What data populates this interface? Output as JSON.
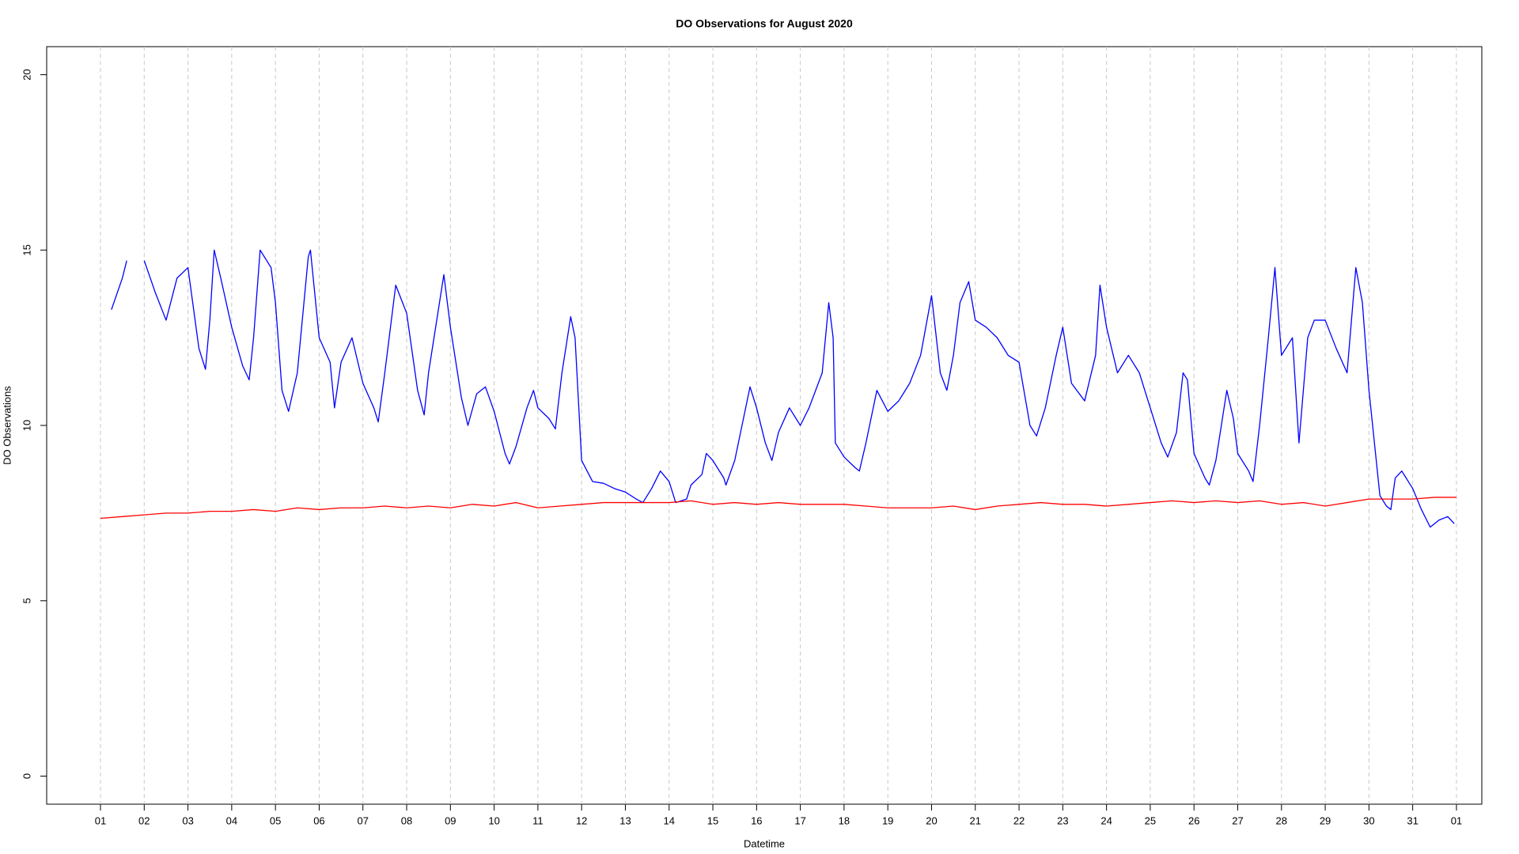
{
  "chart_data": {
    "type": "line",
    "title": "DO Observations for August 2020",
    "x_label": "Datetime",
    "y_label": "DO Observations",
    "xlim": [
      -0.23,
      32.58
    ],
    "ylim": [
      -0.8,
      20.8
    ],
    "yticks": [
      0,
      5,
      10,
      15,
      20
    ],
    "xticks": [
      {
        "value": 1,
        "label": "01"
      },
      {
        "value": 2,
        "label": "02"
      },
      {
        "value": 3,
        "label": "03"
      },
      {
        "value": 4,
        "label": "04"
      },
      {
        "value": 5,
        "label": "05"
      },
      {
        "value": 6,
        "label": "06"
      },
      {
        "value": 7,
        "label": "07"
      },
      {
        "value": 8,
        "label": "08"
      },
      {
        "value": 9,
        "label": "09"
      },
      {
        "value": 10,
        "label": "10"
      },
      {
        "value": 11,
        "label": "11"
      },
      {
        "value": 12,
        "label": "12"
      },
      {
        "value": 13,
        "label": "13"
      },
      {
        "value": 14,
        "label": "14"
      },
      {
        "value": 15,
        "label": "15"
      },
      {
        "value": 16,
        "label": "16"
      },
      {
        "value": 17,
        "label": "17"
      },
      {
        "value": 18,
        "label": "18"
      },
      {
        "value": 19,
        "label": "19"
      },
      {
        "value": 20,
        "label": "20"
      },
      {
        "value": 21,
        "label": "21"
      },
      {
        "value": 22,
        "label": "22"
      },
      {
        "value": 23,
        "label": "23"
      },
      {
        "value": 24,
        "label": "24"
      },
      {
        "value": 25,
        "label": "25"
      },
      {
        "value": 26,
        "label": "26"
      },
      {
        "value": 27,
        "label": "27"
      },
      {
        "value": 28,
        "label": "28"
      },
      {
        "value": 29,
        "label": "29"
      },
      {
        "value": 30,
        "label": "30"
      },
      {
        "value": 31,
        "label": "31"
      },
      {
        "value": 32,
        "label": "01"
      }
    ],
    "grid": "x",
    "series": [
      {
        "color": "#0000ff",
        "x": [
          1.25,
          1.5,
          1.6,
          1.8,
          2.0,
          2.25,
          2.5,
          2.75,
          3.0,
          3.25,
          3.4,
          3.5,
          3.6,
          3.75,
          4.0,
          4.25,
          4.4,
          4.5,
          4.65,
          4.9,
          5.0,
          5.15,
          5.3,
          5.5,
          5.75,
          5.8,
          6.0,
          6.25,
          6.35,
          6.5,
          6.75,
          7.0,
          7.25,
          7.35,
          7.5,
          7.75,
          8.0,
          8.25,
          8.4,
          8.5,
          8.75,
          8.85,
          9.0,
          9.25,
          9.4,
          9.6,
          9.8,
          10.0,
          10.25,
          10.35,
          10.5,
          10.75,
          10.9,
          11.0,
          11.25,
          11.4,
          11.55,
          11.75,
          11.85,
          12.0,
          12.25,
          12.5,
          12.75,
          13.0,
          13.25,
          13.4,
          13.6,
          13.8,
          14.0,
          14.15,
          14.4,
          14.5,
          14.75,
          14.85,
          15.0,
          15.25,
          15.3,
          15.5,
          15.75,
          15.85,
          16.0,
          16.2,
          16.35,
          16.5,
          16.75,
          17.0,
          17.2,
          17.5,
          17.65,
          17.75,
          17.8,
          18.0,
          18.25,
          18.35,
          18.5,
          18.75,
          19.0,
          19.25,
          19.5,
          19.75,
          20.0,
          20.2,
          20.35,
          20.5,
          20.65,
          20.85,
          21.0,
          21.25,
          21.5,
          21.75,
          22.0,
          22.25,
          22.4,
          22.6,
          22.85,
          23.0,
          23.2,
          23.5,
          23.75,
          23.85,
          24.0,
          24.25,
          24.5,
          24.75,
          25.0,
          25.25,
          25.4,
          25.6,
          25.75,
          25.85,
          26.0,
          26.25,
          26.35,
          26.5,
          26.75,
          26.9,
          27.0,
          27.25,
          27.35,
          27.5,
          27.7,
          27.85,
          28.0,
          28.25,
          28.4,
          28.6,
          28.75,
          29.0,
          29.25,
          29.5,
          29.7,
          29.85,
          30.0,
          30.25,
          30.4,
          30.5,
          30.6,
          30.75,
          30.85,
          31.0,
          31.2,
          31.4,
          31.6,
          31.8,
          31.95
        ],
        "values": [
          13.3,
          14.2,
          14.7,
          null,
          14.7,
          13.8,
          13.0,
          14.2,
          14.5,
          12.2,
          11.6,
          13.0,
          15.0,
          14.2,
          12.8,
          11.7,
          11.3,
          12.5,
          15.0,
          14.5,
          13.5,
          11.0,
          10.4,
          11.5,
          14.8,
          15.0,
          12.5,
          11.8,
          10.5,
          11.8,
          12.5,
          11.2,
          10.5,
          10.1,
          11.5,
          14.0,
          13.2,
          11.0,
          10.3,
          11.5,
          13.5,
          14.3,
          12.8,
          10.8,
          10.0,
          10.9,
          11.1,
          10.4,
          9.2,
          8.9,
          9.4,
          10.5,
          11.0,
          10.5,
          10.2,
          9.9,
          11.5,
          13.1,
          12.5,
          9.0,
          8.4,
          8.35,
          8.2,
          8.1,
          7.9,
          7.8,
          8.2,
          8.7,
          8.4,
          7.8,
          7.9,
          8.3,
          8.6,
          9.2,
          9.0,
          8.5,
          8.3,
          9.0,
          10.5,
          11.1,
          10.5,
          9.5,
          9.0,
          9.8,
          10.5,
          10.0,
          10.5,
          11.5,
          13.5,
          12.5,
          9.5,
          9.1,
          8.8,
          8.7,
          9.5,
          11.0,
          10.4,
          10.7,
          11.2,
          12.0,
          13.7,
          11.5,
          11.0,
          12.0,
          13.5,
          14.1,
          13.0,
          12.8,
          12.5,
          12.0,
          11.8,
          10.0,
          9.7,
          10.5,
          12.0,
          12.8,
          11.2,
          10.7,
          12.0,
          14.0,
          12.8,
          11.5,
          12.0,
          11.5,
          10.5,
          9.5,
          9.1,
          9.8,
          11.5,
          11.3,
          9.2,
          8.5,
          8.3,
          9.0,
          11.0,
          10.2,
          9.2,
          8.7,
          8.4,
          10.0,
          12.5,
          14.5,
          12.0,
          12.5,
          9.5,
          12.5,
          13.0,
          13.0,
          12.2,
          11.5,
          14.5,
          13.5,
          11.0,
          8.0,
          7.7,
          7.6,
          8.5,
          8.7,
          8.5,
          8.2,
          7.6,
          7.1,
          7.3,
          7.4,
          7.2
        ]
      },
      {
        "color": "#ff0000",
        "x": [
          1.0,
          1.5,
          2.0,
          2.5,
          3.0,
          3.5,
          4.0,
          4.5,
          5.0,
          5.5,
          6.0,
          6.5,
          7.0,
          7.5,
          8.0,
          8.5,
          9.0,
          9.5,
          10.0,
          10.5,
          11.0,
          11.5,
          12.0,
          12.5,
          13.0,
          13.5,
          14.0,
          14.5,
          15.0,
          15.5,
          16.0,
          16.5,
          17.0,
          17.5,
          18.0,
          18.5,
          19.0,
          19.5,
          20.0,
          20.5,
          21.0,
          21.5,
          22.0,
          22.5,
          23.0,
          23.5,
          24.0,
          24.5,
          25.0,
          25.5,
          26.0,
          26.5,
          27.0,
          27.5,
          28.0,
          28.5,
          29.0,
          29.5,
          30.0,
          30.5,
          31.0,
          31.5,
          32.0
        ],
        "values": [
          7.35,
          7.4,
          7.45,
          7.5,
          7.5,
          7.55,
          7.55,
          7.6,
          7.55,
          7.65,
          7.6,
          7.65,
          7.65,
          7.7,
          7.65,
          7.7,
          7.65,
          7.75,
          7.7,
          7.8,
          7.65,
          7.7,
          7.75,
          7.8,
          7.8,
          7.8,
          7.8,
          7.85,
          7.75,
          7.8,
          7.75,
          7.8,
          7.75,
          7.75,
          7.75,
          7.7,
          7.65,
          7.65,
          7.65,
          7.7,
          7.6,
          7.7,
          7.75,
          7.8,
          7.75,
          7.75,
          7.7,
          7.75,
          7.8,
          7.85,
          7.8,
          7.85,
          7.8,
          7.85,
          7.75,
          7.8,
          7.7,
          7.8,
          7.9,
          7.9,
          7.9,
          7.95,
          7.95
        ]
      }
    ]
  }
}
